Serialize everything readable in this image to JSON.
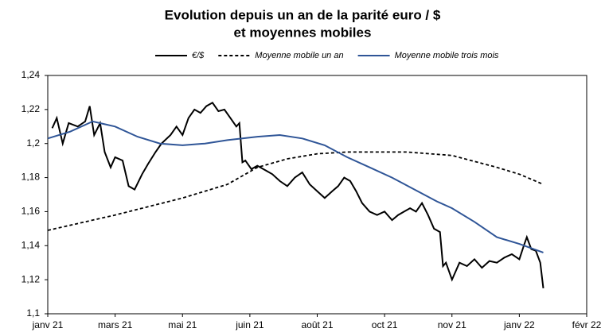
{
  "chart_data": {
    "type": "line",
    "title": "Evolution depuis un an de la parité euro / $",
    "subtitle": "et moyennes mobiles",
    "xlim": [
      0,
      360
    ],
    "xticks": [
      {
        "value": 0,
        "label": "janv 21"
      },
      {
        "value": 45,
        "label": "mars 21"
      },
      {
        "value": 90,
        "label": "mai 21"
      },
      {
        "value": 135,
        "label": "juin 21"
      },
      {
        "value": 180,
        "label": "août 21"
      },
      {
        "value": 225,
        "label": "oct 21"
      },
      {
        "value": 270,
        "label": "nov 21"
      },
      {
        "value": 315,
        "label": "janv 22"
      },
      {
        "value": 360,
        "label": "févr 22"
      }
    ],
    "ylim": [
      1.1,
      1.24
    ],
    "yticks": [
      {
        "value": 1.1,
        "label": "1,1"
      },
      {
        "value": 1.12,
        "label": "1,12"
      },
      {
        "value": 1.14,
        "label": "1,14"
      },
      {
        "value": 1.16,
        "label": "1,16"
      },
      {
        "value": 1.18,
        "label": "1,18"
      },
      {
        "value": 1.2,
        "label": "1,2"
      },
      {
        "value": 1.22,
        "label": "1,22"
      },
      {
        "value": 1.24,
        "label": "1,24"
      }
    ],
    "legend": "top",
    "series": [
      {
        "name": "€/$",
        "color": "#000000",
        "style": "solid",
        "x": [
          3,
          6,
          10,
          14,
          20,
          25,
          28,
          31,
          35,
          38,
          42,
          45,
          50,
          54,
          58,
          63,
          67,
          72,
          76,
          82,
          86,
          90,
          94,
          98,
          102,
          106,
          110,
          114,
          118,
          122,
          126,
          128,
          130,
          132,
          136,
          140,
          146,
          150,
          155,
          160,
          165,
          170,
          175,
          180,
          185,
          190,
          194,
          198,
          202,
          206,
          210,
          215,
          220,
          225,
          230,
          234,
          238,
          242,
          246,
          250,
          254,
          258,
          262,
          264,
          266,
          270,
          275,
          280,
          285,
          290,
          295,
          300,
          305,
          310,
          315,
          318,
          320,
          323,
          326,
          329,
          331
        ],
        "values": [
          1.209,
          1.215,
          1.2,
          1.212,
          1.21,
          1.213,
          1.222,
          1.205,
          1.212,
          1.195,
          1.186,
          1.192,
          1.19,
          1.175,
          1.173,
          1.182,
          1.188,
          1.195,
          1.2,
          1.205,
          1.21,
          1.205,
          1.215,
          1.22,
          1.218,
          1.222,
          1.224,
          1.219,
          1.22,
          1.215,
          1.21,
          1.212,
          1.189,
          1.19,
          1.185,
          1.187,
          1.184,
          1.182,
          1.178,
          1.175,
          1.18,
          1.183,
          1.176,
          1.172,
          1.168,
          1.172,
          1.175,
          1.18,
          1.178,
          1.172,
          1.165,
          1.16,
          1.158,
          1.16,
          1.155,
          1.158,
          1.16,
          1.162,
          1.16,
          1.165,
          1.158,
          1.15,
          1.148,
          1.128,
          1.13,
          1.12,
          1.13,
          1.128,
          1.132,
          1.127,
          1.131,
          1.13,
          1.133,
          1.135,
          1.132,
          1.14,
          1.145,
          1.138,
          1.137,
          1.13,
          1.115
        ]
      },
      {
        "name": "Moyenne mobile un an",
        "color": "#000000",
        "style": "dashed",
        "x": [
          0,
          45,
          90,
          120,
          140,
          160,
          180,
          200,
          240,
          270,
          300,
          315,
          331
        ],
        "values": [
          1.149,
          1.158,
          1.168,
          1.176,
          1.186,
          1.191,
          1.194,
          1.195,
          1.195,
          1.193,
          1.186,
          1.182,
          1.176
        ]
      },
      {
        "name": "Moyenne mobile trois mois",
        "color": "#2f5597",
        "style": "solid",
        "x": [
          0,
          15,
          30,
          45,
          60,
          75,
          90,
          105,
          120,
          140,
          155,
          170,
          185,
          200,
          215,
          230,
          245,
          260,
          270,
          285,
          300,
          315,
          331
        ],
        "values": [
          1.203,
          1.207,
          1.213,
          1.21,
          1.204,
          1.2,
          1.199,
          1.2,
          1.202,
          1.204,
          1.205,
          1.203,
          1.199,
          1.192,
          1.186,
          1.18,
          1.173,
          1.166,
          1.162,
          1.154,
          1.145,
          1.141,
          1.136
        ]
      }
    ]
  }
}
